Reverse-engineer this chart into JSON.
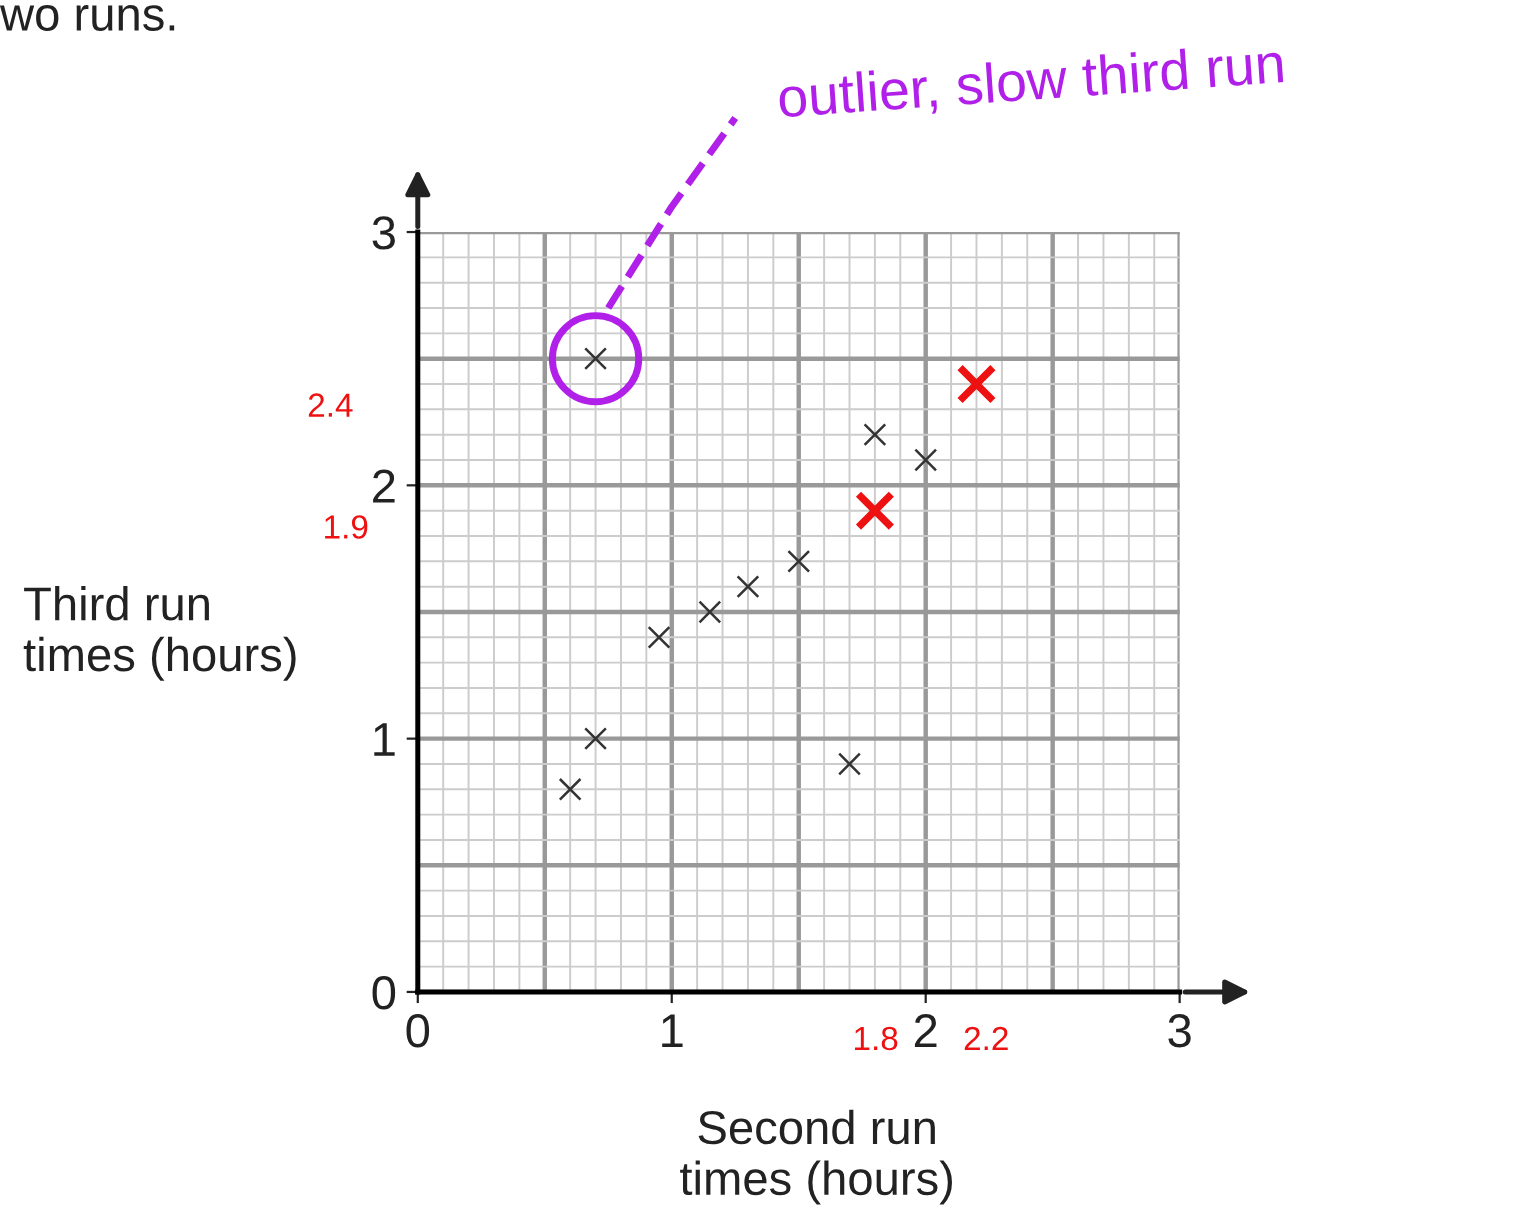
{
  "chart_data": {
    "type": "scatter",
    "xlabel": "Second run\ntimes (hours)",
    "ylabel": "Third run\ntimes (hours)",
    "series": [
      {
        "color": "#333333",
        "x": [
          0.6,
          0.7,
          0.95,
          1.15,
          1.3,
          1.5,
          1.7,
          1.8,
          2.0,
          0.7
        ],
        "values": [
          0.8,
          1.0,
          1.4,
          1.5,
          1.6,
          1.7,
          0.9,
          2.2,
          2.1,
          2.5
        ]
      },
      {
        "color": "#ee1111",
        "x": [
          1.8,
          2.2
        ],
        "values": [
          1.9,
          2.4
        ]
      }
    ],
    "marker": "cross",
    "xlim": [
      0,
      3
    ],
    "ylim": [
      0,
      3
    ],
    "xticks": [
      0,
      1,
      2,
      3
    ],
    "yticks": [
      0,
      1,
      2,
      3
    ],
    "grid": true,
    "annotations": [
      "wo runs.",
      "outlier, slow third run",
      "2.4",
      "1.9",
      "1.8",
      "2.2"
    ]
  }
}
